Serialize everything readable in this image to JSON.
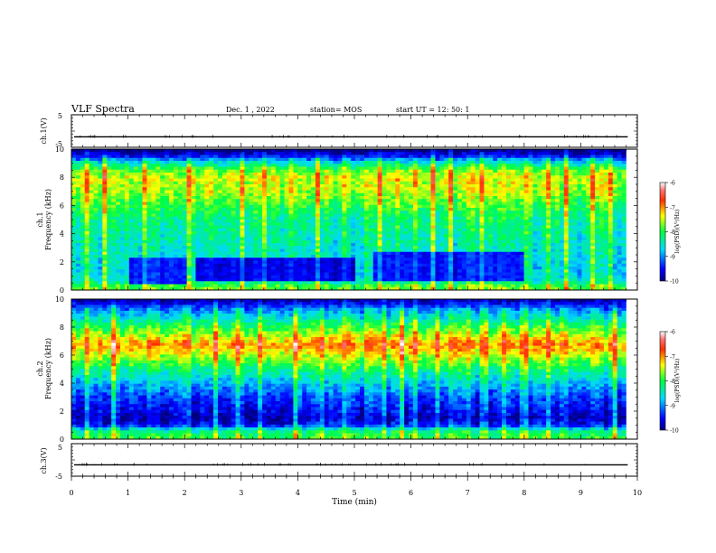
{
  "header": {
    "title": "VLF Spectra",
    "date": "Dec. 1 , 2022",
    "station": "station= MOS",
    "start": "start  UT =   12: 50: 1"
  },
  "chart_data": [
    {
      "type": "line",
      "name": "ch1-waveform",
      "ylabel": "ch.1(V)",
      "ylim": [
        -5,
        5
      ],
      "ytick_labels": [
        "5",
        "-5"
      ],
      "xlim": [
        0,
        10
      ],
      "mean_level_V": -1.8
    },
    {
      "type": "heatmap",
      "name": "ch1-spectrogram",
      "ylabel_line1": "ch.1",
      "ylabel_line2": "Frequency (kHz)",
      "xlim": [
        0,
        9.8
      ],
      "ylim": [
        0,
        10
      ],
      "ytick_labels": [
        "0",
        "2",
        "4",
        "6",
        "8",
        "10"
      ],
      "colorbar": {
        "label": "log(PSD)(V²/Hz)",
        "range": [
          -10,
          -6
        ],
        "tick_labels": [
          "-6",
          "-7",
          "-8",
          "-9",
          "-10"
        ]
      },
      "freq_profile_kHz": [
        0.2,
        0.6,
        1.0,
        1.5,
        2.0,
        3.0,
        4.0,
        5.0,
        6.0,
        7.0,
        8.0,
        8.5,
        9.0,
        9.5,
        9.9
      ],
      "freq_profile_log_psd": [
        -7.8,
        -8.4,
        -8.6,
        -8.7,
        -8.6,
        -8.5,
        -8.4,
        -8.3,
        -8.0,
        -7.6,
        -7.5,
        -7.8,
        -8.5,
        -9.5,
        -10.0
      ],
      "quiet_bands": [
        {
          "t": [
            1.0,
            2.0
          ],
          "f": [
            0.5,
            2.2
          ],
          "level": -9.4
        },
        {
          "t": [
            2.2,
            5.0
          ],
          "f": [
            0.6,
            2.3
          ],
          "level": -9.6
        },
        {
          "t": [
            5.3,
            8.0
          ],
          "f": [
            0.6,
            2.8
          ],
          "level": -9.5
        }
      ],
      "impulses_t_min": [
        0.25,
        0.6,
        1.3,
        2.1,
        2.5,
        3.0,
        3.4,
        3.9,
        4.35,
        4.8,
        5.25,
        5.45,
        5.8,
        6.05,
        6.4,
        6.7,
        7.05,
        7.25,
        7.6,
        8.05,
        8.4,
        8.75,
        9.2,
        9.5
      ]
    },
    {
      "type": "heatmap",
      "name": "ch2-spectrogram",
      "ylabel_line1": "ch.2",
      "ylabel_line2": "Frequency (kHz)",
      "xlim": [
        0,
        9.8
      ],
      "ylim": [
        0,
        10
      ],
      "ytick_labels": [
        "0",
        "2",
        "4",
        "6",
        "8",
        "10"
      ],
      "colorbar": {
        "label": "log(PSD)(V²/Hz)",
        "range": [
          -10,
          -6
        ],
        "tick_labels": [
          "-6",
          "-7",
          "-8",
          "-9",
          "-10"
        ]
      },
      "freq_profile_kHz": [
        0.2,
        0.6,
        1.0,
        1.5,
        2.0,
        3.0,
        4.0,
        5.0,
        6.0,
        6.7,
        7.5,
        8.5,
        9.2,
        9.9
      ],
      "freq_profile_log_psd": [
        -8.0,
        -8.3,
        -9.5,
        -9.8,
        -9.6,
        -9.3,
        -8.8,
        -8.2,
        -7.5,
        -7.0,
        -7.6,
        -8.4,
        -9.0,
        -9.8
      ],
      "quiet_bands": [],
      "impulses_t_min": [
        0.3,
        0.75,
        1.4,
        2.05,
        2.55,
        2.95,
        3.35,
        3.95,
        4.4,
        4.85,
        5.25,
        5.5,
        5.85,
        6.05,
        6.45,
        6.75,
        7.0,
        7.3,
        7.65,
        8.0,
        8.45,
        8.7,
        9.25,
        9.6
      ]
    },
    {
      "type": "line",
      "name": "ch3-waveform",
      "ylabel": "ch.3(V)",
      "ylim": [
        -5,
        5
      ],
      "ytick_labels": [
        "5",
        "-5"
      ],
      "xlim": [
        0,
        10
      ],
      "mean_level_V": -1.5
    }
  ],
  "x_axis": {
    "xlabel": "Time  (min)",
    "xlim": [
      0,
      10
    ],
    "tick_labels": [
      "0",
      "1",
      "2",
      "3",
      "4",
      "5",
      "6",
      "7",
      "8",
      "9",
      "10"
    ]
  }
}
